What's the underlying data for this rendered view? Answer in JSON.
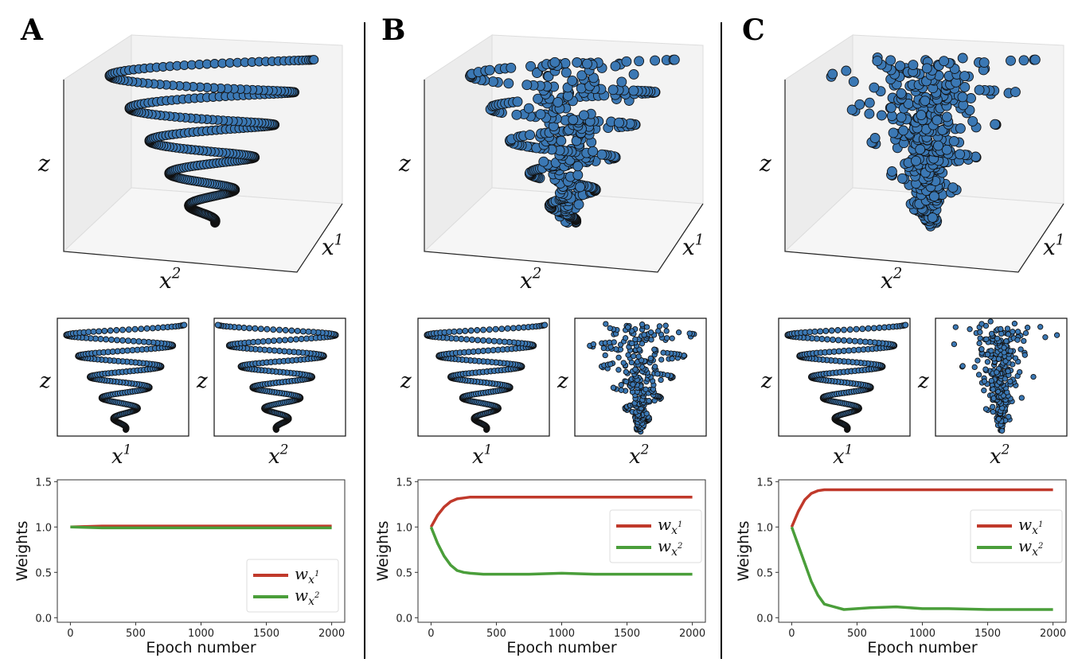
{
  "colors": {
    "point_fill": "#3b78b4",
    "point_edge": "#111111",
    "w1": "#c0392b",
    "w2": "#4a9e3a",
    "pane": "#f2f2f2"
  },
  "panels": [
    {
      "letter": "A",
      "axis_z": "z",
      "axis_x1": {
        "base": "x",
        "sup": "1"
      },
      "axis_x2": {
        "base": "x",
        "sup": "2"
      },
      "scatter_3d": "clean spiral",
      "inset_right": "clean spiral",
      "legend": "lower-right"
    },
    {
      "letter": "B",
      "axis_z": "z",
      "axis_x1": {
        "base": "x",
        "sup": "1"
      },
      "axis_x2": {
        "base": "x",
        "sup": "2"
      },
      "scatter_3d": "partially noisy spiral",
      "inset_right": "noisy",
      "legend": "center-right"
    },
    {
      "letter": "C",
      "axis_z": "z",
      "axis_x1": {
        "base": "x",
        "sup": "1"
      },
      "axis_x2": {
        "base": "x",
        "sup": "2"
      },
      "scatter_3d": "noisy spiral",
      "inset_right": "noisy",
      "legend": "center-right"
    }
  ],
  "legend_entries": [
    {
      "base": "w",
      "sub": "x",
      "sup": "1"
    },
    {
      "base": "w",
      "sub": "x",
      "sup": "2"
    }
  ],
  "chart_data": [
    {
      "type": "line",
      "panel": "A",
      "xlabel": "Epoch number",
      "ylabel": "Weights",
      "xlim": [
        -100,
        2100
      ],
      "ylim": [
        -0.05,
        1.52
      ],
      "xticks": [
        "0",
        "500",
        "1000",
        "1500",
        "2000"
      ],
      "yticks": [
        "0.0",
        "0.5",
        "1.0",
        "1.5"
      ],
      "grid": false,
      "x": [
        0,
        250,
        500,
        750,
        1000,
        1250,
        1500,
        1750,
        2000
      ],
      "series": [
        {
          "name": "w_{x^1}",
          "values": [
            1.0,
            1.01,
            1.01,
            1.01,
            1.01,
            1.01,
            1.01,
            1.01,
            1.01
          ]
        },
        {
          "name": "w_{x^2}",
          "values": [
            1.0,
            0.99,
            0.99,
            0.99,
            0.99,
            0.99,
            0.99,
            0.99,
            0.99
          ]
        }
      ]
    },
    {
      "type": "line",
      "panel": "B",
      "xlabel": "Epoch number",
      "ylabel": "Weights",
      "xlim": [
        -100,
        2100
      ],
      "ylim": [
        -0.05,
        1.52
      ],
      "xticks": [
        "0",
        "500",
        "1000",
        "1500",
        "2000"
      ],
      "yticks": [
        "0.0",
        "0.5",
        "1.0",
        "1.5"
      ],
      "grid": false,
      "x": [
        0,
        50,
        100,
        150,
        200,
        250,
        300,
        400,
        500,
        750,
        1000,
        1250,
        1500,
        1750,
        2000
      ],
      "series": [
        {
          "name": "w_{x^1}",
          "values": [
            1.0,
            1.13,
            1.22,
            1.28,
            1.31,
            1.32,
            1.33,
            1.33,
            1.33,
            1.33,
            1.33,
            1.33,
            1.33,
            1.33,
            1.33
          ]
        },
        {
          "name": "w_{x^2}",
          "values": [
            1.0,
            0.82,
            0.68,
            0.58,
            0.52,
            0.5,
            0.49,
            0.48,
            0.48,
            0.48,
            0.49,
            0.48,
            0.48,
            0.48,
            0.48
          ]
        }
      ]
    },
    {
      "type": "line",
      "panel": "C",
      "xlabel": "Epoch number",
      "ylabel": "Weights",
      "xlim": [
        -100,
        2100
      ],
      "ylim": [
        -0.05,
        1.52
      ],
      "xticks": [
        "0",
        "500",
        "1000",
        "1500",
        "2000"
      ],
      "yticks": [
        "0.0",
        "0.5",
        "1.0",
        "1.5"
      ],
      "grid": false,
      "x": [
        0,
        50,
        100,
        150,
        200,
        250,
        300,
        400,
        500,
        600,
        800,
        1000,
        1200,
        1500,
        2000
      ],
      "series": [
        {
          "name": "w_{x^1}",
          "values": [
            1.0,
            1.17,
            1.3,
            1.37,
            1.4,
            1.41,
            1.41,
            1.41,
            1.41,
            1.41,
            1.41,
            1.41,
            1.41,
            1.41,
            1.41
          ]
        },
        {
          "name": "w_{x^2}",
          "values": [
            1.0,
            0.8,
            0.6,
            0.4,
            0.25,
            0.15,
            0.13,
            0.09,
            0.1,
            0.11,
            0.12,
            0.1,
            0.1,
            0.09,
            0.09
          ]
        }
      ]
    }
  ]
}
